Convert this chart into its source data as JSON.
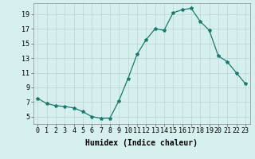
{
  "x": [
    0,
    1,
    2,
    3,
    4,
    5,
    6,
    7,
    8,
    9,
    10,
    11,
    12,
    13,
    14,
    15,
    16,
    17,
    18,
    19,
    20,
    21,
    22,
    23
  ],
  "y": [
    7.5,
    6.8,
    6.5,
    6.4,
    6.2,
    5.7,
    5.0,
    4.8,
    4.8,
    7.2,
    10.2,
    13.5,
    15.5,
    17.0,
    16.8,
    19.2,
    19.6,
    19.8,
    18.0,
    16.8,
    13.3,
    12.5,
    11.0,
    9.5
  ],
  "line_color": "#1a7a6a",
  "marker": "*",
  "marker_size": 3,
  "bg_color": "#d6f0f0",
  "grid_color": "#c0d8d8",
  "xlabel": "Humidex (Indice chaleur)",
  "ylim": [
    4,
    20.5
  ],
  "xlim": [
    -0.5,
    23.5
  ],
  "yticks": [
    5,
    7,
    9,
    11,
    13,
    15,
    17,
    19
  ],
  "xticks": [
    0,
    1,
    2,
    3,
    4,
    5,
    6,
    7,
    8,
    9,
    10,
    11,
    12,
    13,
    14,
    15,
    16,
    17,
    18,
    19,
    20,
    21,
    22,
    23
  ],
  "xtick_labels": [
    "0",
    "1",
    "2",
    "3",
    "4",
    "5",
    "6",
    "7",
    "8",
    "9",
    "10",
    "11",
    "12",
    "13",
    "14",
    "15",
    "16",
    "17",
    "18",
    "19",
    "20",
    "21",
    "22",
    "23"
  ],
  "tick_fontsize": 6,
  "xlabel_fontsize": 7
}
